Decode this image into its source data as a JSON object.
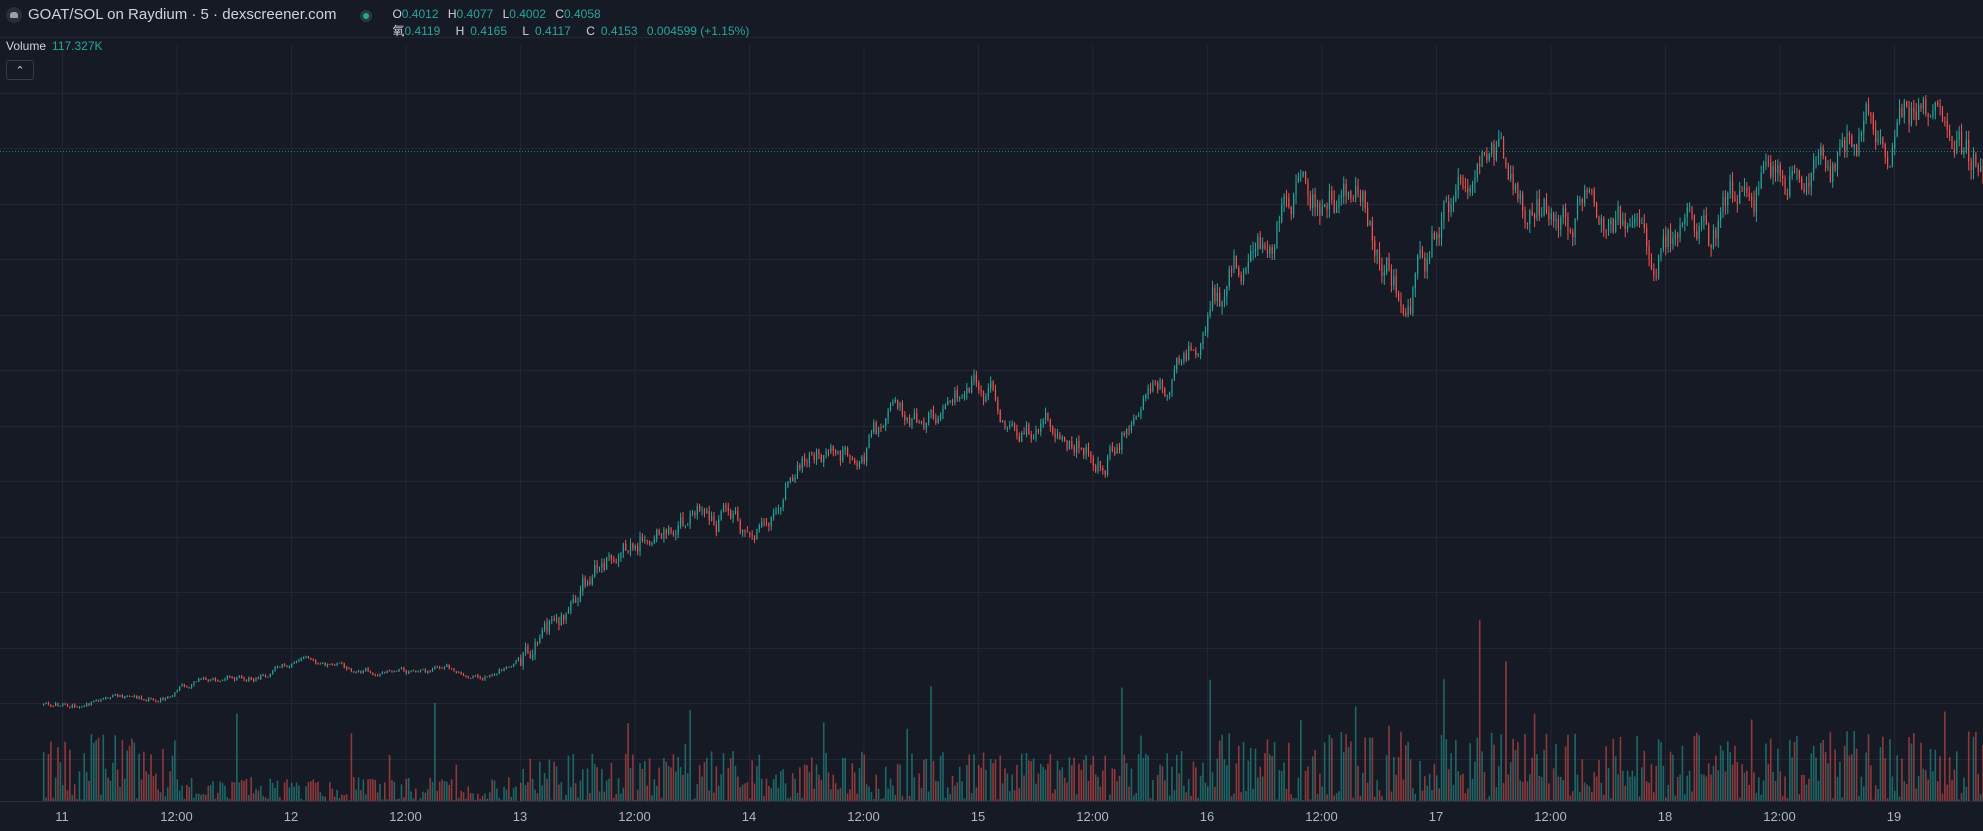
{
  "header": {
    "title": "GOAT/SOL on Raydium · 5 · dexscreener.com",
    "row1": [
      {
        "label": "O",
        "value": "0.4012"
      },
      {
        "label": "H",
        "value": "0.4077"
      },
      {
        "label": "L",
        "value": "0.4002"
      },
      {
        "label": "C",
        "value": "0.4058"
      }
    ],
    "row2_prefix": "氧",
    "row2": [
      {
        "label": "",
        "value": "0.4119"
      },
      {
        "label": "H",
        "value": "0.4165"
      },
      {
        "label": "L",
        "value": "0.4117"
      },
      {
        "label": "C",
        "value": "0.4153"
      }
    ],
    "row2_change": "0.004599 (+1.15%)"
  },
  "volume": {
    "label": "Volume",
    "value": "117.327K"
  },
  "collapse_icon": "chevron-up-icon",
  "colors": {
    "up": "#26a69a",
    "down": "#ef5350",
    "background": "#161a25",
    "grid": "#232632",
    "last_price_line": "#26a69a"
  },
  "chart_data": {
    "type": "candlestick",
    "x_ticks": [
      "11",
      "12:00",
      "12",
      "12:00",
      "13",
      "12:00",
      "14",
      "12:00",
      "15",
      "12:00",
      "16",
      "12:00",
      "17",
      "12:00",
      "18",
      "12:00",
      "19"
    ],
    "price_path": [
      [
        0.0,
        0.2012
      ],
      [
        0.1,
        0.2022
      ],
      [
        0.2,
        0.2038
      ],
      [
        0.45,
        0.2045
      ],
      [
        0.6,
        0.2085
      ],
      [
        0.75,
        0.2095
      ],
      [
        0.9,
        0.211
      ],
      [
        1.0,
        0.214
      ],
      [
        1.2,
        0.2128
      ],
      [
        1.4,
        0.2115
      ],
      [
        1.6,
        0.2112
      ],
      [
        1.85,
        0.2118
      ],
      [
        2.0,
        0.2155
      ],
      [
        2.1,
        0.222
      ],
      [
        2.2,
        0.231
      ],
      [
        2.35,
        0.244
      ],
      [
        2.5,
        0.256
      ],
      [
        2.6,
        0.261
      ],
      [
        2.75,
        0.263
      ],
      [
        2.9,
        0.264
      ],
      [
        3.0,
        0.254
      ],
      [
        3.1,
        0.263
      ],
      [
        3.2,
        0.276
      ],
      [
        3.3,
        0.285
      ],
      [
        3.45,
        0.281
      ],
      [
        3.6,
        0.287
      ],
      [
        3.75,
        0.293
      ],
      [
        3.9,
        0.301
      ],
      [
        4.0,
        0.304
      ],
      [
        4.1,
        0.296
      ],
      [
        4.25,
        0.29
      ],
      [
        4.4,
        0.287
      ],
      [
        4.55,
        0.284
      ],
      [
        4.65,
        0.296
      ],
      [
        4.75,
        0.302
      ],
      [
        4.85,
        0.304
      ],
      [
        4.95,
        0.316
      ],
      [
        5.05,
        0.329
      ],
      [
        5.15,
        0.346
      ],
      [
        5.3,
        0.36
      ],
      [
        5.4,
        0.369
      ],
      [
        5.5,
        0.361
      ],
      [
        5.6,
        0.365
      ],
      [
        5.75,
        0.349
      ],
      [
        5.85,
        0.34
      ],
      [
        5.95,
        0.345
      ],
      [
        6.05,
        0.36
      ],
      [
        6.2,
        0.375
      ],
      [
        6.35,
        0.365
      ],
      [
        6.5,
        0.362
      ],
      [
        6.65,
        0.356
      ],
      [
        6.8,
        0.359
      ],
      [
        6.95,
        0.344
      ],
      [
        7.05,
        0.35
      ],
      [
        7.2,
        0.345
      ],
      [
        7.35,
        0.352
      ],
      [
        7.45,
        0.367
      ],
      [
        7.6,
        0.373
      ],
      [
        7.7,
        0.37
      ],
      [
        7.85,
        0.381
      ],
      [
        7.9,
        0.384
      ],
      [
        8.0,
        0.387
      ],
      [
        8.1,
        0.386
      ],
      [
        8.2,
        0.378
      ],
      [
        8.35,
        0.372
      ],
      [
        8.5,
        0.36
      ],
      [
        8.6,
        0.369
      ],
      [
        8.7,
        0.362
      ]
    ],
    "volume_max": 250,
    "ylim": [
      0.19,
      0.4
    ]
  }
}
